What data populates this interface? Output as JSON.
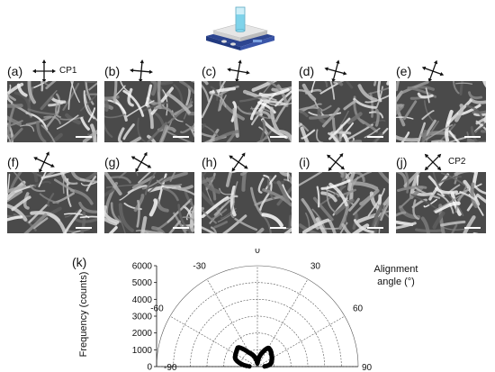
{
  "panels": [
    {
      "label": "(a)",
      "polarizer_angle": 0,
      "cp_label": "CP1"
    },
    {
      "label": "(b)",
      "polarizer_angle": 5,
      "cp_label": ""
    },
    {
      "label": "(c)",
      "polarizer_angle": 10,
      "cp_label": ""
    },
    {
      "label": "(d)",
      "polarizer_angle": 15,
      "cp_label": ""
    },
    {
      "label": "(e)",
      "polarizer_angle": 20,
      "cp_label": ""
    },
    {
      "label": "(f)",
      "polarizer_angle": 25,
      "cp_label": ""
    },
    {
      "label": "(g)",
      "polarizer_angle": 30,
      "cp_label": ""
    },
    {
      "label": "(h)",
      "polarizer_angle": 35,
      "cp_label": ""
    },
    {
      "label": "(i)",
      "polarizer_angle": 40,
      "cp_label": ""
    },
    {
      "label": "(j)",
      "polarizer_angle": 45,
      "cp_label": "CP2"
    }
  ],
  "icons": {
    "stirrer": "hot-plate-stirrer-icon",
    "polarizer": "crossed-polarizers-icon"
  },
  "colors": {
    "stirrer_body": "#3a55a8",
    "stirrer_top": "#e8e8e8",
    "liquid": "#7fd3ea",
    "points": "#000000"
  },
  "chart_data": {
    "type": "scatter",
    "panel_label": "(k)",
    "title": "",
    "ylabel": "Frequency (counts)",
    "angle_label_line1": "Alignment",
    "angle_label_line2": "angle (°)",
    "radial_range": [
      0,
      6000
    ],
    "radial_ticks": [
      0,
      1000,
      2000,
      3000,
      4000,
      5000,
      6000
    ],
    "angle_range": [
      -90,
      90
    ],
    "angle_ticks": [
      -90,
      -60,
      -30,
      0,
      30,
      60,
      90
    ],
    "angle_tick_labels": [
      "-90",
      "-60",
      "-30",
      "0",
      "30",
      "60",
      "90"
    ],
    "grid": true,
    "points": [
      {
        "angle": -88,
        "r": 480
      },
      {
        "angle": -86,
        "r": 650
      },
      {
        "angle": -84,
        "r": 780
      },
      {
        "angle": -82,
        "r": 900
      },
      {
        "angle": -80,
        "r": 1000
      },
      {
        "angle": -78,
        "r": 1100
      },
      {
        "angle": -76,
        "r": 1200
      },
      {
        "angle": -74,
        "r": 1280
      },
      {
        "angle": -72,
        "r": 1350
      },
      {
        "angle": -70,
        "r": 1400
      },
      {
        "angle": -68,
        "r": 1430
      },
      {
        "angle": -66,
        "r": 1450
      },
      {
        "angle": -64,
        "r": 1460
      },
      {
        "angle": -62,
        "r": 1480
      },
      {
        "angle": -60,
        "r": 1500
      },
      {
        "angle": -58,
        "r": 1510
      },
      {
        "angle": -56,
        "r": 1520
      },
      {
        "angle": -54,
        "r": 1540
      },
      {
        "angle": -52,
        "r": 1560
      },
      {
        "angle": -50,
        "r": 1580
      },
      {
        "angle": -48,
        "r": 1600
      },
      {
        "angle": -46,
        "r": 1620
      },
      {
        "angle": -44,
        "r": 1580
      },
      {
        "angle": -42,
        "r": 1500
      },
      {
        "angle": -40,
        "r": 1400
      },
      {
        "angle": -38,
        "r": 1300
      },
      {
        "angle": -36,
        "r": 1200
      },
      {
        "angle": -34,
        "r": 1100
      },
      {
        "angle": -32,
        "r": 1000
      },
      {
        "angle": -30,
        "r": 950
      },
      {
        "angle": -28,
        "r": 900
      },
      {
        "angle": -26,
        "r": 850
      },
      {
        "angle": -24,
        "r": 800
      },
      {
        "angle": -22,
        "r": 750
      },
      {
        "angle": -20,
        "r": 700
      },
      {
        "angle": -18,
        "r": 650
      },
      {
        "angle": -16,
        "r": 600
      },
      {
        "angle": -14,
        "r": 550
      },
      {
        "angle": -12,
        "r": 500
      },
      {
        "angle": -10,
        "r": 450
      },
      {
        "angle": -8,
        "r": 400
      },
      {
        "angle": -6,
        "r": 350
      },
      {
        "angle": -4,
        "r": 300
      },
      {
        "angle": -2,
        "r": 250
      },
      {
        "angle": 0,
        "r": 200
      },
      {
        "angle": 2,
        "r": 260
      },
      {
        "angle": 4,
        "r": 330
      },
      {
        "angle": 6,
        "r": 400
      },
      {
        "angle": 8,
        "r": 470
      },
      {
        "angle": 10,
        "r": 550
      },
      {
        "angle": 12,
        "r": 630
      },
      {
        "angle": 14,
        "r": 700
      },
      {
        "angle": 16,
        "r": 780
      },
      {
        "angle": 18,
        "r": 850
      },
      {
        "angle": 20,
        "r": 920
      },
      {
        "angle": 22,
        "r": 1000
      },
      {
        "angle": 24,
        "r": 1080
      },
      {
        "angle": 26,
        "r": 1150
      },
      {
        "angle": 28,
        "r": 1220
      },
      {
        "angle": 30,
        "r": 1280
      },
      {
        "angle": 32,
        "r": 1300
      },
      {
        "angle": 34,
        "r": 1280
      },
      {
        "angle": 36,
        "r": 1250
      },
      {
        "angle": 38,
        "r": 1250
      },
      {
        "angle": 40,
        "r": 1230
      },
      {
        "angle": 42,
        "r": 1200
      },
      {
        "angle": 44,
        "r": 1180
      },
      {
        "angle": 46,
        "r": 1150
      },
      {
        "angle": 48,
        "r": 1120
      },
      {
        "angle": 50,
        "r": 1100
      },
      {
        "angle": 52,
        "r": 1080
      },
      {
        "angle": 54,
        "r": 1060
      },
      {
        "angle": 56,
        "r": 1040
      },
      {
        "angle": 58,
        "r": 1020
      },
      {
        "angle": 60,
        "r": 1000
      },
      {
        "angle": 62,
        "r": 980
      },
      {
        "angle": 64,
        "r": 960
      },
      {
        "angle": 66,
        "r": 940
      },
      {
        "angle": 68,
        "r": 920
      },
      {
        "angle": 70,
        "r": 900
      },
      {
        "angle": 72,
        "r": 880
      },
      {
        "angle": 74,
        "r": 860
      },
      {
        "angle": 76,
        "r": 840
      },
      {
        "angle": 78,
        "r": 800
      },
      {
        "angle": 80,
        "r": 760
      },
      {
        "angle": 82,
        "r": 700
      },
      {
        "angle": 84,
        "r": 620
      },
      {
        "angle": 86,
        "r": 540
      },
      {
        "angle": 88,
        "r": 430
      }
    ]
  }
}
